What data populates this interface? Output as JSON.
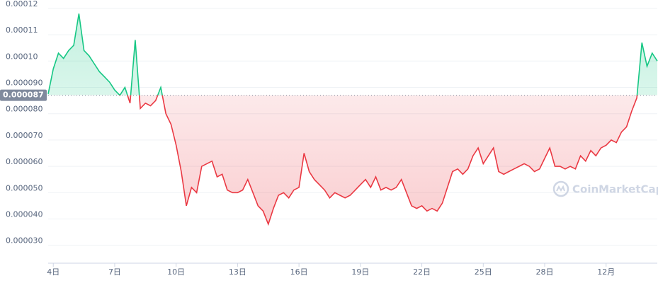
{
  "chart_data": {
    "type": "line",
    "watermark": "CoinMarketCap",
    "baseline": 8.7e-05,
    "colors": {
      "above": "#16c784",
      "below": "#ea3943"
    },
    "grid": true,
    "values": [
      8.75e-05,
      9.7e-05,
      0.000103,
      0.000101,
      0.000104,
      0.000106,
      0.000118,
      0.000104,
      0.000102,
      9.9e-05,
      9.6e-05,
      9.4e-05,
      9.2e-05,
      8.9e-05,
      8.7e-05,
      9e-05,
      8.4e-05,
      0.000108,
      8.2e-05,
      8.4e-05,
      8.3e-05,
      8.5e-05,
      9e-05,
      8e-05,
      7.6e-05,
      6.8e-05,
      5.8e-05,
      4.5e-05,
      5.2e-05,
      5e-05,
      6e-05,
      6.1e-05,
      6.2e-05,
      5.6e-05,
      5.7e-05,
      5.1e-05,
      5e-05,
      5e-05,
      5.1e-05,
      5.5e-05,
      5e-05,
      4.5e-05,
      4.3e-05,
      3.8e-05,
      4.4e-05,
      4.9e-05,
      5e-05,
      4.8e-05,
      5.1e-05,
      5.2e-05,
      6.5e-05,
      5.8e-05,
      5.5e-05,
      5.3e-05,
      5.1e-05,
      4.8e-05,
      5e-05,
      4.9e-05,
      4.8e-05,
      4.9e-05,
      5.1e-05,
      5.3e-05,
      5.5e-05,
      5.2e-05,
      5.6e-05,
      5.1e-05,
      5.2e-05,
      5.1e-05,
      5.2e-05,
      5.5e-05,
      5e-05,
      4.5e-05,
      4.4e-05,
      4.5e-05,
      4.3e-05,
      4.4e-05,
      4.3e-05,
      4.6e-05,
      5.2e-05,
      5.8e-05,
      5.9e-05,
      5.7e-05,
      5.9e-05,
      6.4e-05,
      6.7e-05,
      6.1e-05,
      6.4e-05,
      6.7e-05,
      5.8e-05,
      5.7e-05,
      5.8e-05,
      5.9e-05,
      6e-05,
      6.1e-05,
      6e-05,
      5.8e-05,
      5.9e-05,
      6.3e-05,
      6.7e-05,
      6e-05,
      6e-05,
      5.9e-05,
      6e-05,
      5.9e-05,
      6.4e-05,
      6.2e-05,
      6.6e-05,
      6.4e-05,
      6.7e-05,
      6.8e-05,
      7e-05,
      6.9e-05,
      7.3e-05,
      7.5e-05,
      8.1e-05,
      8.6e-05,
      0.000107,
      9.8e-05,
      0.000103,
      0.0001
    ],
    "xlim": [
      0,
      119
    ],
    "xticks": [
      {
        "value": 1,
        "label": "4日"
      },
      {
        "value": 13,
        "label": "7日"
      },
      {
        "value": 25,
        "label": "10日"
      },
      {
        "value": 37,
        "label": "13日"
      },
      {
        "value": 49,
        "label": "16日"
      },
      {
        "value": 61,
        "label": "19日"
      },
      {
        "value": 73,
        "label": "22日"
      },
      {
        "value": 85,
        "label": "25日"
      },
      {
        "value": 97,
        "label": "28日"
      },
      {
        "value": 109,
        "label": "12月"
      }
    ],
    "ylim": [
      2.32e-05,
      0.0001232
    ],
    "yticks": [
      0.00012,
      0.00011,
      {
        "value": 0.0001,
        "label": "0.00010"
      },
      {
        "value": 9e-05,
        "label": "0.000090"
      },
      {
        "value": 8e-05,
        "label": "0.000080"
      },
      {
        "value": 7e-05,
        "label": "0.000070"
      },
      {
        "value": 6e-05,
        "label": "0.000060"
      },
      {
        "value": 5e-05,
        "label": "0.000050"
      },
      {
        "value": 4e-05,
        "label": "0.000040"
      },
      {
        "value": 3e-05,
        "label": "0.000030"
      }
    ]
  }
}
